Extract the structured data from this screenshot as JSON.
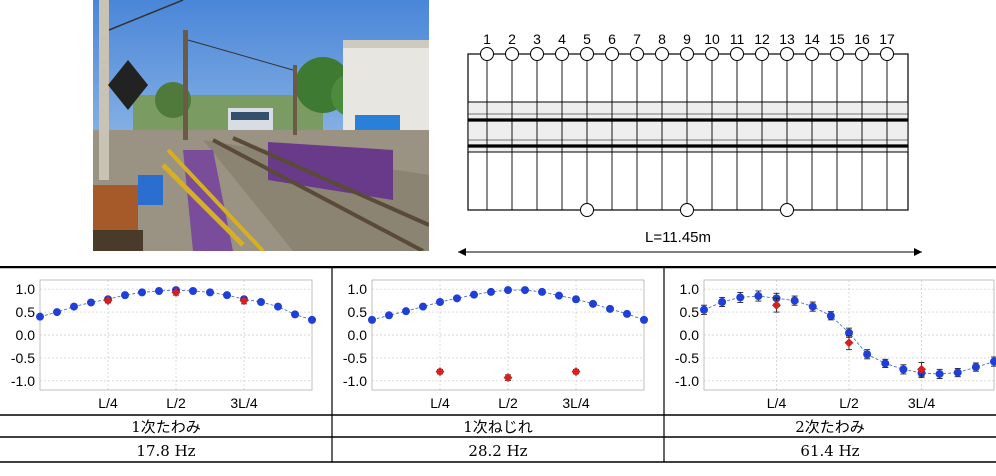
{
  "diagram": {
    "sensor_top_labels": [
      "1",
      "2",
      "3",
      "4",
      "5",
      "6",
      "7",
      "8",
      "9",
      "10",
      "11",
      "12",
      "13",
      "14",
      "15",
      "16",
      "17"
    ],
    "bottom_sensor_positions": [
      5,
      9,
      13
    ],
    "span_label": "L=11.45m"
  },
  "modes": [
    {
      "name": "1次たわみ",
      "freq": "17.8 Hz"
    },
    {
      "name": "1次ねじれ",
      "freq": "28.2 Hz"
    },
    {
      "name": "2次たわみ",
      "freq": "61.4 Hz"
    }
  ],
  "colors": {
    "blue_marker": "#1f3fd6",
    "red_marker": "#d62020",
    "grid": "#c8c8c8",
    "curve": "#4a70c8"
  },
  "chart_data": [
    {
      "type": "scatter",
      "title": "",
      "yticks": [
        "1.0",
        "0.5",
        "0.0",
        "-0.5",
        "-1.0"
      ],
      "ylim": [
        -1.2,
        1.2
      ],
      "xtick_labels": [
        "L/4",
        "L/2",
        "3L/4"
      ],
      "xtick_positions": [
        0.25,
        0.5,
        0.75
      ],
      "grid": true,
      "series": [
        {
          "x": [
            0,
            0.0625,
            0.125,
            0.1875,
            0.25,
            0.3125,
            0.375,
            0.4375,
            0.5,
            0.5625,
            0.625,
            0.6875,
            0.75,
            0.8125,
            0.875,
            0.9375,
            1.0
          ],
          "y": [
            0.4,
            0.5,
            0.62,
            0.71,
            0.78,
            0.87,
            0.93,
            0.96,
            0.98,
            0.96,
            0.93,
            0.87,
            0.78,
            0.72,
            0.62,
            0.45,
            0.33
          ],
          "err": [
            0.03,
            0.03,
            0.03,
            0.03,
            0.03,
            0.03,
            0.03,
            0.03,
            0.03,
            0.03,
            0.03,
            0.03,
            0.03,
            0.03,
            0.03,
            0.03,
            0.03
          ],
          "color": "#1f3fd6"
        },
        {
          "x": [
            0.25,
            0.5,
            0.75
          ],
          "y": [
            0.75,
            0.93,
            0.75
          ],
          "err": [
            0.05,
            0.06,
            0.07
          ],
          "color": "#d62020"
        }
      ],
      "curve": {
        "x": [
          0,
          0.0625,
          0.125,
          0.1875,
          0.25,
          0.3125,
          0.375,
          0.4375,
          0.5,
          0.5625,
          0.625,
          0.6875,
          0.75,
          0.8125,
          0.875,
          0.9375,
          1.0
        ],
        "y": [
          0.4,
          0.5,
          0.62,
          0.71,
          0.78,
          0.87,
          0.93,
          0.96,
          0.98,
          0.96,
          0.93,
          0.87,
          0.78,
          0.72,
          0.62,
          0.45,
          0.33
        ]
      }
    },
    {
      "type": "scatter",
      "title": "",
      "yticks": [
        "1.0",
        "0.5",
        "0.0",
        "-0.5",
        "-1.0"
      ],
      "ylim": [
        -1.2,
        1.2
      ],
      "xtick_labels": [
        "L/4",
        "L/2",
        "3L/4"
      ],
      "xtick_positions": [
        0.25,
        0.5,
        0.75
      ],
      "grid": true,
      "series": [
        {
          "x": [
            0,
            0.0625,
            0.125,
            0.1875,
            0.25,
            0.3125,
            0.375,
            0.4375,
            0.5,
            0.5625,
            0.625,
            0.6875,
            0.75,
            0.8125,
            0.875,
            0.9375,
            1.0
          ],
          "y": [
            0.33,
            0.43,
            0.52,
            0.62,
            0.72,
            0.8,
            0.88,
            0.94,
            0.98,
            0.98,
            0.94,
            0.86,
            0.78,
            0.68,
            0.57,
            0.46,
            0.33
          ],
          "err": [
            0.03,
            0.03,
            0.03,
            0.03,
            0.03,
            0.03,
            0.03,
            0.03,
            0.03,
            0.03,
            0.03,
            0.03,
            0.03,
            0.03,
            0.03,
            0.03,
            0.03
          ],
          "color": "#1f3fd6"
        },
        {
          "x": [
            0.25,
            0.5,
            0.75
          ],
          "y": [
            -0.8,
            -0.93,
            -0.8
          ],
          "err": [
            0.05,
            0.06,
            0.05
          ],
          "color": "#d62020"
        }
      ],
      "curve": {
        "x": [
          0,
          0.0625,
          0.125,
          0.1875,
          0.25,
          0.3125,
          0.375,
          0.4375,
          0.5,
          0.5625,
          0.625,
          0.6875,
          0.75,
          0.8125,
          0.875,
          0.9375,
          1.0
        ],
        "y": [
          0.33,
          0.43,
          0.52,
          0.62,
          0.72,
          0.8,
          0.88,
          0.94,
          0.98,
          0.98,
          0.94,
          0.86,
          0.78,
          0.68,
          0.57,
          0.46,
          0.33
        ]
      }
    },
    {
      "type": "scatter",
      "title": "",
      "yticks": [
        "1.0",
        "0.5",
        "0.0",
        "-0.5",
        "-1.0"
      ],
      "ylim": [
        -1.2,
        1.2
      ],
      "xtick_labels": [
        "L/4",
        "L/2",
        "3L/4"
      ],
      "xtick_positions": [
        0.25,
        0.5,
        0.75
      ],
      "grid": true,
      "series": [
        {
          "x": [
            0,
            0.0625,
            0.125,
            0.1875,
            0.25,
            0.3125,
            0.375,
            0.4375,
            0.5,
            0.5625,
            0.625,
            0.6875,
            0.75,
            0.8125,
            0.875,
            0.9375,
            1.0
          ],
          "y": [
            0.55,
            0.72,
            0.82,
            0.85,
            0.8,
            0.75,
            0.62,
            0.42,
            0.05,
            -0.42,
            -0.62,
            -0.75,
            -0.83,
            -0.85,
            -0.82,
            -0.7,
            -0.58
          ],
          "err": [
            0.1,
            0.1,
            0.11,
            0.11,
            0.11,
            0.1,
            0.1,
            0.09,
            0.1,
            0.1,
            0.09,
            0.1,
            0.1,
            0.1,
            0.09,
            0.09,
            0.1
          ],
          "color": "#1f3fd6"
        },
        {
          "x": [
            0.25,
            0.5,
            0.75
          ],
          "y": [
            0.65,
            -0.17,
            -0.75
          ],
          "err": [
            0.15,
            0.15,
            0.15
          ],
          "color": "#d62020"
        }
      ],
      "curve": {
        "x": [
          0,
          0.0625,
          0.125,
          0.1875,
          0.25,
          0.3125,
          0.375,
          0.4375,
          0.5,
          0.5625,
          0.625,
          0.6875,
          0.75,
          0.8125,
          0.875,
          0.9375,
          1.0
        ],
        "y": [
          0.55,
          0.72,
          0.82,
          0.85,
          0.8,
          0.75,
          0.62,
          0.42,
          0.05,
          -0.42,
          -0.62,
          -0.75,
          -0.83,
          -0.85,
          -0.82,
          -0.7,
          -0.58
        ]
      }
    }
  ]
}
